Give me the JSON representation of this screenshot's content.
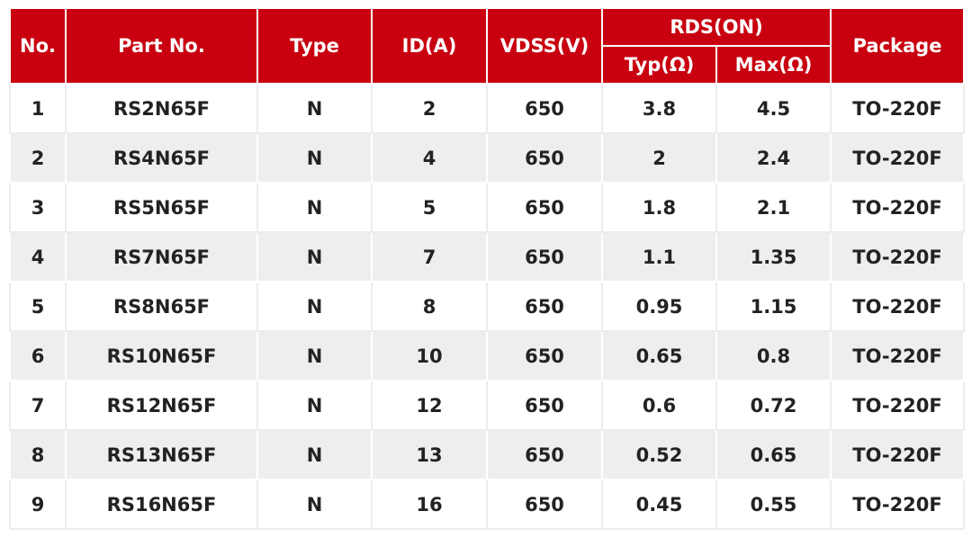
{
  "table": {
    "header": {
      "top": [
        "No.",
        "Part No.",
        "Type",
        "ID(A)",
        "VDSS(V)",
        "RDS(ON)",
        "Package"
      ],
      "sub": [
        "Typ(Ω)",
        "Max(Ω)"
      ]
    },
    "rows": [
      [
        "1",
        "RS2N65F",
        "N",
        "2",
        "650",
        "3.8",
        "4.5",
        "TO-220F"
      ],
      [
        "2",
        "RS4N65F",
        "N",
        "4",
        "650",
        "2",
        "2.4",
        "TO-220F"
      ],
      [
        "3",
        "RS5N65F",
        "N",
        "5",
        "650",
        "1.8",
        "2.1",
        "TO-220F"
      ],
      [
        "4",
        "RS7N65F",
        "N",
        "7",
        "650",
        "1.1",
        "1.35",
        "TO-220F"
      ],
      [
        "5",
        "RS8N65F",
        "N",
        "8",
        "650",
        "0.95",
        "1.15",
        "TO-220F"
      ],
      [
        "6",
        "RS10N65F",
        "N",
        "10",
        "650",
        "0.65",
        "0.8",
        "TO-220F"
      ],
      [
        "7",
        "RS12N65F",
        "N",
        "12",
        "650",
        "0.6",
        "0.72",
        "TO-220F"
      ],
      [
        "8",
        "RS13N65F",
        "N",
        "13",
        "650",
        "0.52",
        "0.65",
        "TO-220F"
      ],
      [
        "9",
        "RS16N65F",
        "N",
        "16",
        "650",
        "0.45",
        "0.55",
        "TO-220F"
      ]
    ]
  }
}
